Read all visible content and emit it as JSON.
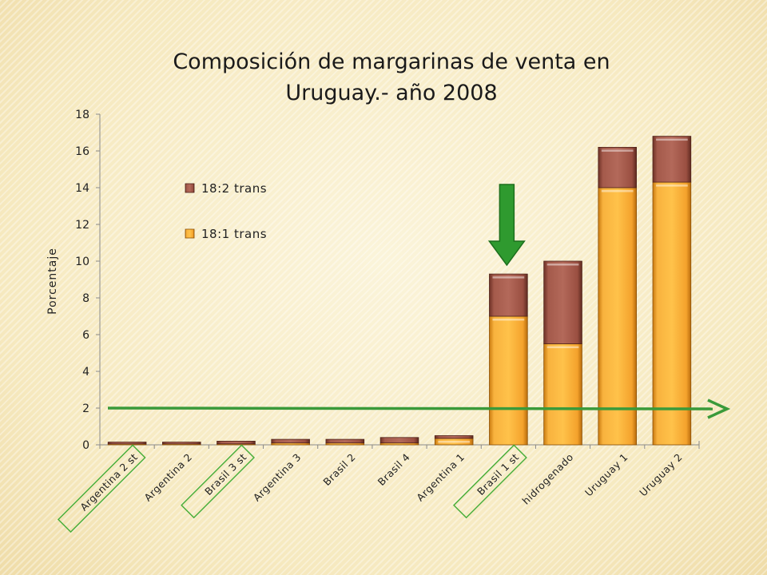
{
  "chart_data": {
    "type": "bar",
    "stacked": true,
    "title_lines": [
      "Composición de margarinas de venta en",
      "Uruguay.- año 2008"
    ],
    "ylabel": "Porcentaje",
    "ylim": [
      0,
      18
    ],
    "yticks": [
      "0",
      "2",
      "4",
      "6",
      "8",
      "10",
      "12",
      "14",
      "16",
      "18"
    ],
    "categories": [
      "Argentina 2 st",
      "Argentina 2",
      "Brasil 3 st",
      "Argentina 3",
      "Brasil 2",
      "Brasil 4",
      "Argentina 1",
      "Brasil 1 st",
      "hidrogenado",
      "Uruguay 1",
      "Uruguay 2"
    ],
    "highlighted_categories": [
      "Argentina 2 st",
      "Brasil 3 st",
      "Brasil 1 st"
    ],
    "series": [
      {
        "name": "18:1 trans",
        "color": "#f5a935",
        "values": [
          0.05,
          0.05,
          0.05,
          0.1,
          0.1,
          0.1,
          0.35,
          7.0,
          5.5,
          14.0,
          14.3
        ]
      },
      {
        "name": "18:2 trans",
        "color": "#a4584a",
        "values": [
          0.1,
          0.1,
          0.15,
          0.2,
          0.2,
          0.3,
          0.15,
          2.3,
          4.5,
          2.2,
          2.5
        ]
      }
    ],
    "legend_position": "top-left inside plot",
    "grid": false,
    "annotations": {
      "reference_line": {
        "y": 2,
        "color": "#3a9a3a",
        "arrow": "right"
      },
      "down_arrow": {
        "category": "Brasil 1 st",
        "color": "#2f9a2f"
      },
      "highlight_box_color": "#4caf3c"
    }
  }
}
